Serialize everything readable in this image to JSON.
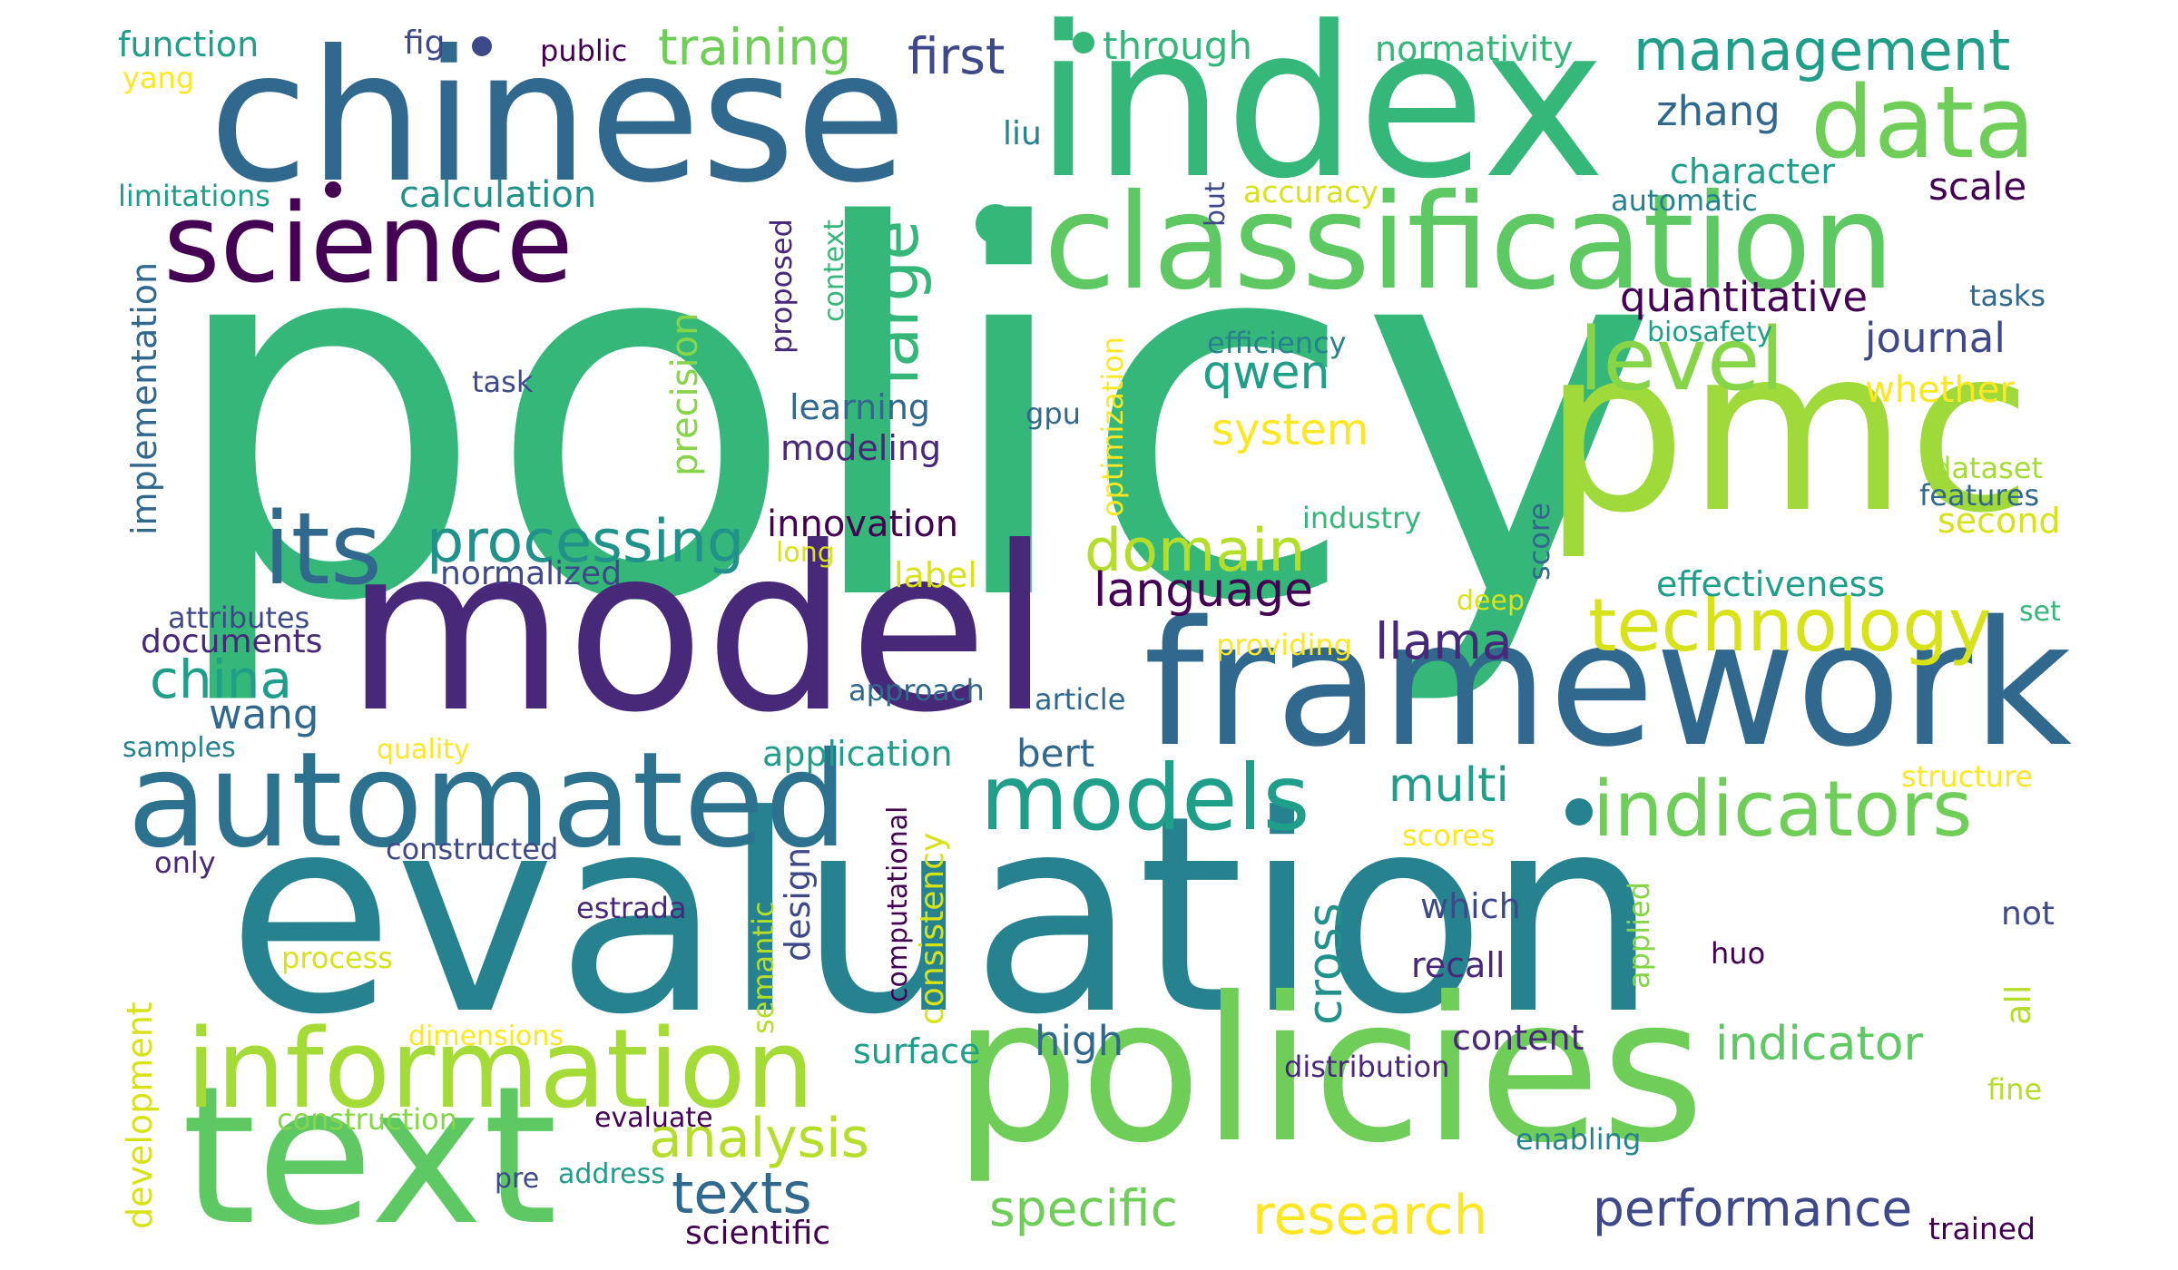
{
  "palette": {
    "background": "#ffffff",
    "dark_purple": "#440154",
    "indigo": "#482878",
    "blue": "#3e4989",
    "slate_blue": "#31688e",
    "teal": "#26828e",
    "green_teal": "#1f9e89",
    "green": "#35b779",
    "lime": "#6ece58",
    "yellow_green": "#b5de2b",
    "yellow": "#fde725"
  },
  "words": {
    "policy": "policy",
    "evaluation": "evaluation",
    "model": "model",
    "index": "index",
    "chinese": "chinese",
    "pmc": "pmc",
    "policies": "policies",
    "framework": "framework",
    "text": "text",
    "classification": "classification",
    "automated": "automated",
    "information": "information",
    "science": "science",
    "data": "data",
    "level": "level",
    "models": "models",
    "its": "its",
    "indicators": "indicators",
    "technology": "technology",
    "processing": "processing",
    "domain": "domain",
    "large": "large",
    "management": "management",
    "training": "training",
    "first": "first",
    "texts": "texts",
    "analysis": "analysis",
    "research": "research",
    "performance": "performance",
    "indicator": "indicator",
    "china": "china",
    "specific": "specific",
    "llama": "llama",
    "language": "language",
    "qwen": "qwen",
    "multi": "multi",
    "high": "high",
    "wang": "wang",
    "bert": "bert",
    "quantitative": "quantitative",
    "journal": "journal",
    "system": "system",
    "calculation": "calculation",
    "innovation": "innovation",
    "application": "application",
    "precision": "precision",
    "scale": "scale",
    "zhang": "zhang",
    "character": "character",
    "cross": "cross",
    "function": "function",
    "fig": "fig",
    "public": "public",
    "through": "through",
    "normativity": "normativity",
    "yang": "yang",
    "liu": "liu",
    "limitations": "limitations",
    "accuracy": "accuracy",
    "automatic": "automatic",
    "tasks": "tasks",
    "biosafety": "biosafety",
    "efficiency": "efficiency",
    "task": "task",
    "learning": "learning",
    "gpu": "gpu",
    "modeling": "modeling",
    "whether": "whether",
    "dataset": "dataset",
    "features": "features",
    "second": "second",
    "industry": "industry",
    "long": "long",
    "normalized": "normalized",
    "label": "label",
    "effectiveness": "effectiveness",
    "attributes": "attributes",
    "documents": "documents",
    "deep": "deep",
    "set": "set",
    "providing": "providing",
    "approach": "approach",
    "article": "article",
    "samples": "samples",
    "quality": "quality",
    "structure": "structure",
    "scores": "scores",
    "constructed": "constructed",
    "only": "only",
    "estrada": "estrada",
    "which": "which",
    "not": "not",
    "huo": "huo",
    "process": "process",
    "recall": "recall",
    "dimensions": "dimensions",
    "content": "content",
    "surface": "surface",
    "distribution": "distribution",
    "fine": "fine",
    "construction": "construction",
    "evaluate": "evaluate",
    "enabling": "enabling",
    "address": "address",
    "pre": "pre",
    "scientific": "scientific",
    "trained": "trained",
    "implementation": "implementation",
    "proposed": "proposed",
    "context": "context",
    "but": "but",
    "optimization": "optimization",
    "score": "score",
    "semantic": "semantic",
    "design": "design",
    "computational": "computational",
    "consistency": "consistency",
    "applied": "applied",
    "all": "all",
    "development": "development"
  }
}
